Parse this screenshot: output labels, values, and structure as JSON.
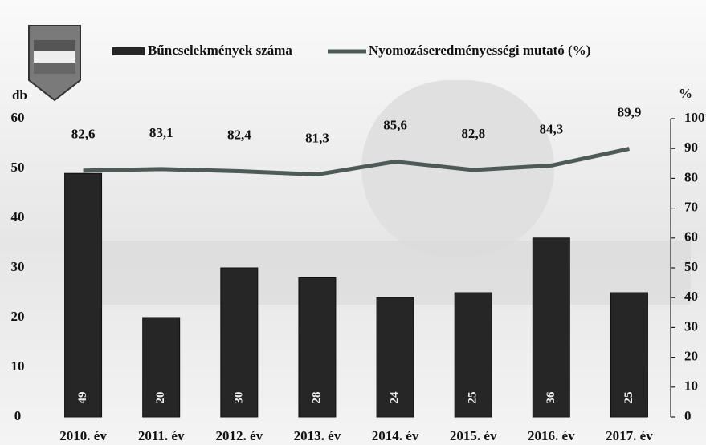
{
  "chart_data": {
    "type": "bar",
    "categories": [
      "2010. év",
      "2011. év",
      "2012. év",
      "2013. év",
      "2014. év",
      "2015. év",
      "2016. év",
      "2017. év"
    ],
    "series": [
      {
        "name": "Bűncselekmények száma",
        "color": "#262626",
        "type": "bar",
        "values": [
          49,
          20,
          30,
          28,
          24,
          25,
          36,
          25
        ]
      },
      {
        "name": "Nyomozáseredményességi mutató (%)",
        "color": "#4d5a57",
        "type": "line",
        "axis": "y2",
        "values": [
          82.6,
          83.1,
          82.4,
          81.3,
          85.6,
          82.8,
          84.3,
          89.9
        ],
        "value_labels": [
          "82,6",
          "83,1",
          "82,4",
          "81,3",
          "85,6",
          "82,8",
          "84,3",
          "89,9"
        ]
      }
    ],
    "ylabel": "db",
    "y2label": "%",
    "ylim": [
      0,
      60
    ],
    "yticks": [
      0,
      10,
      20,
      30,
      40,
      50,
      60
    ],
    "y2lim": [
      0,
      100
    ],
    "y2ticks": [
      0,
      10,
      20,
      30,
      40,
      50,
      60,
      70,
      80,
      90,
      100
    ]
  }
}
